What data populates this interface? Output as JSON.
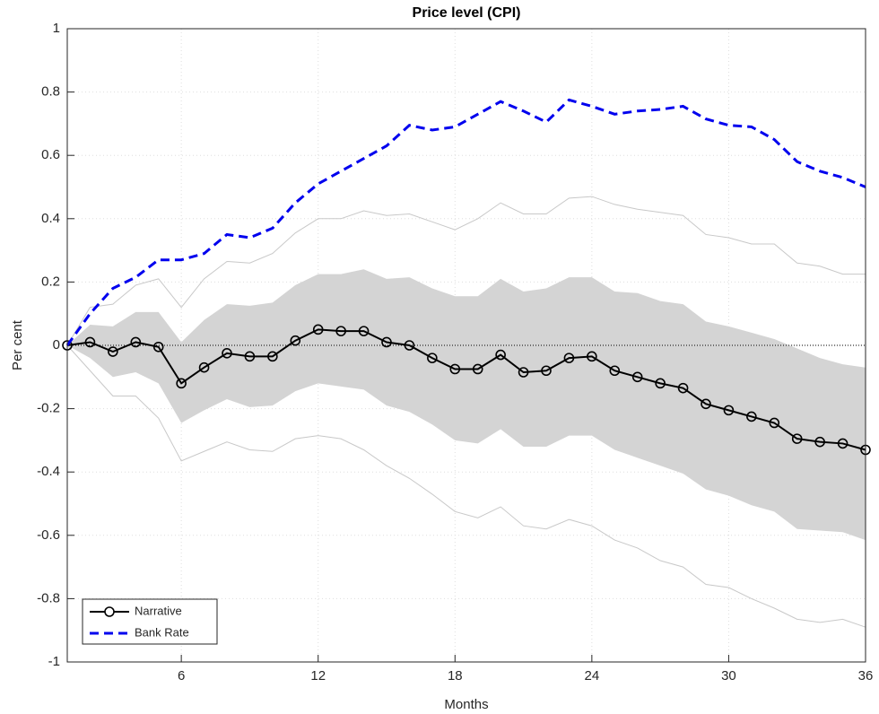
{
  "chart_data": {
    "type": "line",
    "title": "Price level (CPI)",
    "x_label": "Months",
    "y_label": "Per cent",
    "x": [
      1,
      2,
      3,
      4,
      5,
      6,
      7,
      8,
      9,
      10,
      11,
      12,
      13,
      14,
      15,
      16,
      17,
      18,
      19,
      20,
      21,
      22,
      23,
      24,
      25,
      26,
      27,
      28,
      29,
      30,
      31,
      32,
      33,
      34,
      35,
      36
    ],
    "series": [
      {
        "name": "Narrative",
        "color": "#000000",
        "dash": false,
        "marker": "circle",
        "values": [
          0,
          0.01,
          -0.02,
          0.01,
          -0.005,
          -0.12,
          -0.07,
          -0.025,
          -0.035,
          -0.035,
          0.015,
          0.05,
          0.045,
          0.045,
          0.01,
          0,
          -0.04,
          -0.075,
          -0.075,
          -0.03,
          -0.085,
          -0.08,
          -0.04,
          -0.035,
          -0.08,
          -0.1,
          -0.12,
          -0.135,
          -0.185,
          -0.205,
          -0.225,
          -0.245,
          -0.295,
          -0.305,
          -0.31,
          -0.33
        ]
      },
      {
        "name": "Bank Rate",
        "color": "#0000ee",
        "dash": true,
        "marker": "none",
        "values": [
          0,
          0.1,
          0.18,
          0.215,
          0.27,
          0.27,
          0.29,
          0.35,
          0.34,
          0.37,
          0.45,
          0.51,
          0.55,
          0.59,
          0.63,
          0.695,
          0.68,
          0.69,
          0.73,
          0.77,
          0.74,
          0.705,
          0.775,
          0.755,
          0.73,
          0.74,
          0.745,
          0.755,
          0.715,
          0.695,
          0.69,
          0.65,
          0.58,
          0.55,
          0.53,
          0.5
        ]
      }
    ],
    "bands": [
      {
        "style": "fill",
        "color": "#d4d4d4",
        "upper": [
          0,
          0.065,
          0.06,
          0.105,
          0.105,
          0.01,
          0.08,
          0.13,
          0.125,
          0.135,
          0.19,
          0.225,
          0.225,
          0.24,
          0.21,
          0.215,
          0.18,
          0.155,
          0.155,
          0.21,
          0.17,
          0.18,
          0.215,
          0.215,
          0.17,
          0.165,
          0.14,
          0.13,
          0.075,
          0.06,
          0.04,
          0.02,
          -0.01,
          -0.04,
          -0.06,
          -0.07
        ],
        "lower": [
          0,
          -0.04,
          -0.1,
          -0.085,
          -0.12,
          -0.245,
          -0.205,
          -0.17,
          -0.195,
          -0.19,
          -0.145,
          -0.12,
          -0.13,
          -0.14,
          -0.19,
          -0.21,
          -0.25,
          -0.3,
          -0.31,
          -0.265,
          -0.32,
          -0.32,
          -0.285,
          -0.285,
          -0.33,
          -0.355,
          -0.38,
          -0.405,
          -0.455,
          -0.475,
          -0.505,
          -0.525,
          -0.58,
          -0.585,
          -0.59,
          -0.615
        ]
      },
      {
        "style": "line",
        "color": "#c8c8c8",
        "upper": [
          0,
          0.12,
          0.13,
          0.19,
          0.21,
          0.12,
          0.21,
          0.265,
          0.26,
          0.29,
          0.355,
          0.4,
          0.4,
          0.425,
          0.41,
          0.415,
          0.39,
          0.365,
          0.4,
          0.45,
          0.415,
          0.415,
          0.465,
          0.47,
          0.445,
          0.43,
          0.42,
          0.41,
          0.35,
          0.34,
          0.32,
          0.32,
          0.26,
          0.25,
          0.225,
          0.225
        ],
        "lower": [
          0,
          -0.08,
          -0.16,
          -0.16,
          -0.23,
          -0.365,
          -0.335,
          -0.305,
          -0.33,
          -0.335,
          -0.295,
          -0.285,
          -0.295,
          -0.33,
          -0.38,
          -0.42,
          -0.47,
          -0.525,
          -0.545,
          -0.51,
          -0.57,
          -0.58,
          -0.55,
          -0.57,
          -0.615,
          -0.64,
          -0.68,
          -0.7,
          -0.755,
          -0.765,
          -0.8,
          -0.83,
          -0.865,
          -0.875,
          -0.865,
          -0.89
        ]
      }
    ],
    "zero_line": true,
    "xlim": [
      1,
      36
    ],
    "xticks": [
      6,
      12,
      18,
      24,
      30,
      36
    ],
    "ylim": [
      -1,
      1
    ],
    "yticks": [
      -1,
      -0.8,
      -0.6,
      -0.4,
      -0.2,
      0,
      0.2,
      0.4,
      0.6,
      0.8,
      1
    ],
    "grid": true,
    "legend": "lower left"
  }
}
